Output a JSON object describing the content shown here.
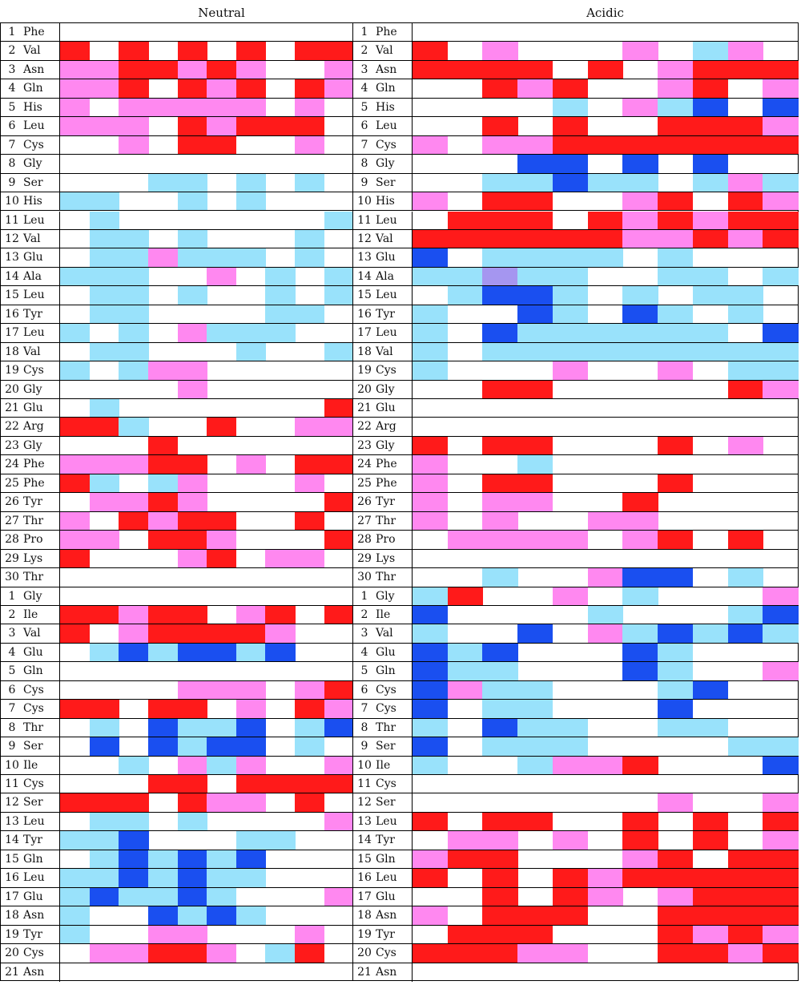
{
  "colors": {
    "R": "#ff1a1a",
    "P": "#ff88f0",
    "L": "#99e2fb",
    "B": "#1a4ff0",
    "V": "#a596f0"
  },
  "panels": [
    {
      "title": "Neutral",
      "rows": [
        {
          "idx": "1",
          "res": "Phe",
          "cells": "-----------"
        },
        {
          "idx": "2",
          "res": "Val",
          "cells": "R-R-R-R-RRR"
        },
        {
          "idx": "3",
          "res": "Asn",
          "cells": "PPRRPRP--PR"
        },
        {
          "idx": "4",
          "res": "Gln",
          "cells": "PPR-RPR-RP-"
        },
        {
          "idx": "5",
          "res": "His",
          "cells": "P-PPPPP-P-R"
        },
        {
          "idx": "6",
          "res": "Leu",
          "cells": "PPP-RPRRR-R"
        },
        {
          "idx": "7",
          "res": "Cys",
          "cells": "--P-RR--P--"
        },
        {
          "idx": "8",
          "res": "Gly",
          "cells": "-----------"
        },
        {
          "idx": "9",
          "res": "Ser",
          "cells": "---LL-L-L--"
        },
        {
          "idx": "10",
          "res": "His",
          "cells": "LL--L-L----"
        },
        {
          "idx": "11",
          "res": "Leu",
          "cells": "-L-------LL"
        },
        {
          "idx": "12",
          "res": "Val",
          "cells": "-LL-L---L--"
        },
        {
          "idx": "13",
          "res": "Glu",
          "cells": "-LLPLLL-L--"
        },
        {
          "idx": "14",
          "res": "Ala",
          "cells": "LLL--P-L-LP"
        },
        {
          "idx": "15",
          "res": "Leu",
          "cells": "-LL-L--L-LP"
        },
        {
          "idx": "16",
          "res": "Tyr",
          "cells": "-LL----LL--"
        },
        {
          "idx": "17",
          "res": "Leu",
          "cells": "L-L-PLLL---"
        },
        {
          "idx": "18",
          "res": "Val",
          "cells": "-LL---L--L-"
        },
        {
          "idx": "19",
          "res": "Cys",
          "cells": "L-LPP-----L"
        },
        {
          "idx": "20",
          "res": "Gly",
          "cells": "----P------"
        },
        {
          "idx": "21",
          "res": "Glu",
          "cells": "-L-------R-"
        },
        {
          "idx": "22",
          "res": "Arg",
          "cells": "RRL--R--PP-"
        },
        {
          "idx": "23",
          "res": "Gly",
          "cells": "---R-------"
        },
        {
          "idx": "24",
          "res": "Phe",
          "cells": "PPPRR-P-RRR"
        },
        {
          "idx": "25",
          "res": "Phe",
          "cells": "RL-LP---P--"
        },
        {
          "idx": "26",
          "res": "Tyr",
          "cells": "-PPRP----RR"
        },
        {
          "idx": "27",
          "res": "Thr",
          "cells": "P-RPRR--R-R"
        },
        {
          "idx": "28",
          "res": "Pro",
          "cells": "PP-RRP---RR"
        },
        {
          "idx": "29",
          "res": "Lys",
          "cells": "R---PR-PP-R"
        },
        {
          "idx": "30",
          "res": "Thr",
          "cells": "-----------"
        },
        {
          "idx": "1",
          "res": "Gly",
          "cells": "-----------"
        },
        {
          "idx": "2",
          "res": "Ile",
          "cells": "RRPRR-PR-RP"
        },
        {
          "idx": "3",
          "res": "Val",
          "cells": "R-PRRRRP---"
        },
        {
          "idx": "4",
          "res": "Glu",
          "cells": "-LBLBBLB--P"
        },
        {
          "idx": "5",
          "res": "Gln",
          "cells": "-----------"
        },
        {
          "idx": "6",
          "res": "Cys",
          "cells": "----PPP-PR-"
        },
        {
          "idx": "7",
          "res": "Cys",
          "cells": "RR-RR-P-RP-"
        },
        {
          "idx": "8",
          "res": "Thr",
          "cells": "-L-BLLB-LBB"
        },
        {
          "idx": "9",
          "res": "Ser",
          "cells": "-B-BLBB-L-L"
        },
        {
          "idx": "10",
          "res": "Ile",
          "cells": "--L-PLP--P-"
        },
        {
          "idx": "11",
          "res": "Cys",
          "cells": "---RR-RRRR-"
        },
        {
          "idx": "12",
          "res": "Ser",
          "cells": "RRR-RPP-R--"
        },
        {
          "idx": "13",
          "res": "Leu",
          "cells": "-LL-L----PL"
        },
        {
          "idx": "14",
          "res": "Tyr",
          "cells": "LLB---LL--B"
        },
        {
          "idx": "15",
          "res": "Gln",
          "cells": "-LBLBLB---B"
        },
        {
          "idx": "16",
          "res": "Leu",
          "cells": "LLBLBLL----"
        },
        {
          "idx": "17",
          "res": "Glu",
          "cells": "LBLLBL---P-"
        },
        {
          "idx": "18",
          "res": "Asn",
          "cells": "L--BLBL---B"
        },
        {
          "idx": "19",
          "res": "Tyr",
          "cells": "L--PP---P--"
        },
        {
          "idx": "20",
          "res": "Cys",
          "cells": "-PPRRP-LR--"
        },
        {
          "idx": "21",
          "res": "Asn",
          "cells": "-----------"
        }
      ]
    },
    {
      "title": "Acidic",
      "rows": [
        {
          "idx": "1",
          "res": "Phe",
          "cells": "-----------"
        },
        {
          "idx": "2",
          "res": "Val",
          "cells": "R-P---P-LP-"
        },
        {
          "idx": "3",
          "res": "Asn",
          "cells": "RRRR-R-PRRR"
        },
        {
          "idx": "4",
          "res": "Gln",
          "cells": "--RPR--PR-P"
        },
        {
          "idx": "5",
          "res": "His",
          "cells": "----L-PLB-B"
        },
        {
          "idx": "6",
          "res": "Leu",
          "cells": "--R-R--RRRP"
        },
        {
          "idx": "7",
          "res": "Cys",
          "cells": "P-PPRRRRRRR"
        },
        {
          "idx": "8",
          "res": "Gly",
          "cells": "---BB-B-B--"
        },
        {
          "idx": "9",
          "res": "Ser",
          "cells": "--LLBLL-LPL"
        },
        {
          "idx": "10",
          "res": "His",
          "cells": "P-RR--PR-RP"
        },
        {
          "idx": "11",
          "res": "Leu",
          "cells": "-RRR-RPRPRR"
        },
        {
          "idx": "12",
          "res": "Val",
          "cells": "RRRRRRPPRPR"
        },
        {
          "idx": "13",
          "res": "Glu",
          "cells": "B-LLLL-L---"
        },
        {
          "idx": "14",
          "res": "Ala",
          "cells": "LLVLL--LL-L"
        },
        {
          "idx": "15",
          "res": "Leu",
          "cells": "-LBBL-L-LL-"
        },
        {
          "idx": "16",
          "res": "Tyr",
          "cells": "L--BL-BL-L-"
        },
        {
          "idx": "17",
          "res": "Leu",
          "cells": "L-BLLLLLL-B"
        },
        {
          "idx": "18",
          "res": "Val",
          "cells": "L-LLLLLLLLL"
        },
        {
          "idx": "19",
          "res": "Cys",
          "cells": "L---P--P-LL"
        },
        {
          "idx": "20",
          "res": "Gly",
          "cells": "--RR-----RP"
        },
        {
          "idx": "21",
          "res": "Glu",
          "cells": "-----------"
        },
        {
          "idx": "22",
          "res": "Arg",
          "cells": "-----------"
        },
        {
          "idx": "23",
          "res": "Gly",
          "cells": "R-RR---R-P-"
        },
        {
          "idx": "24",
          "res": "Phe",
          "cells": "P--L-------"
        },
        {
          "idx": "25",
          "res": "Phe",
          "cells": "P-RR---R---"
        },
        {
          "idx": "26",
          "res": "Tyr",
          "cells": "P-PP--R----"
        },
        {
          "idx": "27",
          "res": "Thr",
          "cells": "P-P--PP----"
        },
        {
          "idx": "28",
          "res": "Pro",
          "cells": "-PPPP-PR-R-"
        },
        {
          "idx": "29",
          "res": "Lys",
          "cells": "-----------"
        },
        {
          "idx": "30",
          "res": "Thr",
          "cells": "--L--PBB-L-"
        },
        {
          "idx": "1",
          "res": "Gly",
          "cells": "LR--P-L---P"
        },
        {
          "idx": "2",
          "res": "Ile",
          "cells": "B----L---LB"
        },
        {
          "idx": "3",
          "res": "Val",
          "cells": "L--B-PLBLBL"
        },
        {
          "idx": "4",
          "res": "Glu",
          "cells": "BLB---BL---"
        },
        {
          "idx": "5",
          "res": "Gln",
          "cells": "BLL---BL--P"
        },
        {
          "idx": "6",
          "res": "Cys",
          "cells": "BPLL---LB--"
        },
        {
          "idx": "7",
          "res": "Cys",
          "cells": "B-LL---B---"
        },
        {
          "idx": "8",
          "res": "Thr",
          "cells": "L-BLL--LL--"
        },
        {
          "idx": "9",
          "res": "Ser",
          "cells": "B-LLL----LL"
        },
        {
          "idx": "10",
          "res": "Ile",
          "cells": "L--LPPR---B"
        },
        {
          "idx": "11",
          "res": "Cys",
          "cells": "-----------"
        },
        {
          "idx": "12",
          "res": "Ser",
          "cells": "-------P--P"
        },
        {
          "idx": "13",
          "res": "Leu",
          "cells": "R-RR--R-R-R"
        },
        {
          "idx": "14",
          "res": "Tyr",
          "cells": "-PP-P-R-R-P"
        },
        {
          "idx": "15",
          "res": "Gln",
          "cells": "PRR---PR-RR"
        },
        {
          "idx": "16",
          "res": "Leu",
          "cells": "R-R-RPRRRRR"
        },
        {
          "idx": "17",
          "res": "Glu",
          "cells": "--R-RP-PRRR"
        },
        {
          "idx": "18",
          "res": "Asn",
          "cells": "P-RRR--RRRR"
        },
        {
          "idx": "19",
          "res": "Tyr",
          "cells": "-RRR---RPRP"
        },
        {
          "idx": "20",
          "res": "Cys",
          "cells": "RRRPP--RRPR"
        },
        {
          "idx": "21",
          "res": "Asn",
          "cells": "-----------"
        }
      ]
    }
  ]
}
